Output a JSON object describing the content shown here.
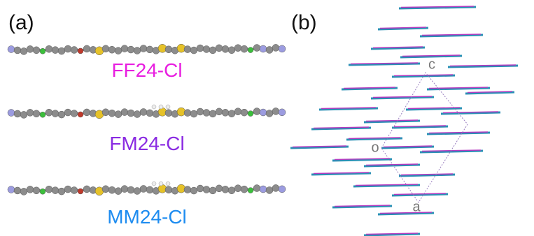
{
  "panel_a": {
    "label": "(a)",
    "molecules": [
      "FF24-Cl",
      "FM24-Cl",
      "MM24-Cl"
    ]
  },
  "panel_b": {
    "label": "(b)",
    "axes": {
      "c": "c",
      "o": "o",
      "a": "a"
    }
  }
}
